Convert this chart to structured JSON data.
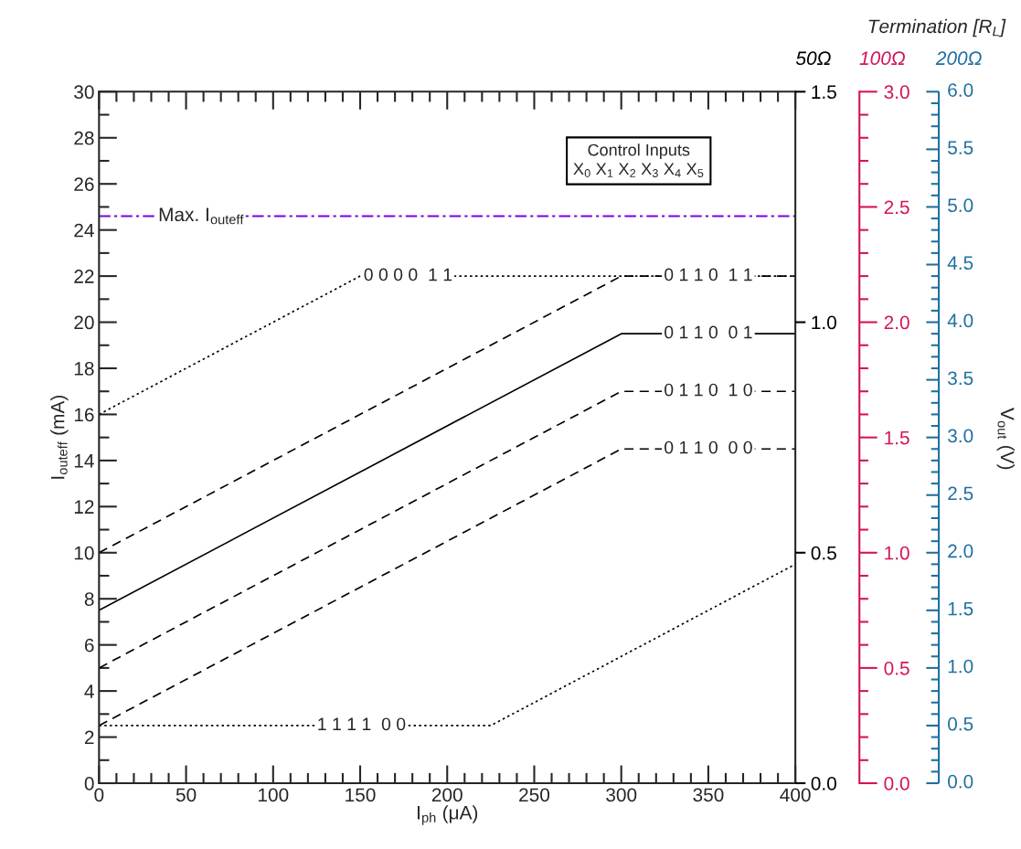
{
  "chart_data": {
    "type": "line",
    "xlabel": "I$_{ph}$ (μA)",
    "ylabel": "I$_{outeff}$ (mA)",
    "y2label": "50Ω",
    "y3label": "100Ω",
    "xlim": [
      0,
      400
    ],
    "xticks": [
      0,
      50,
      100,
      150,
      200,
      250,
      300,
      350,
      400
    ],
    "ylim": [
      0,
      30
    ],
    "yticks": [
      0,
      2,
      4,
      6,
      8,
      10,
      12,
      14,
      16,
      18,
      20,
      22,
      24,
      26,
      28,
      30
    ],
    "y2lim": [
      0,
      1.5
    ],
    "y2ticks": [
      {
        "value": 0,
        "label": "0.0"
      },
      0.5,
      {
        "value": 1,
        "label": "1.0"
      },
      1.5
    ],
    "y3lim": [
      0,
      3
    ],
    "y3ticks": [
      {
        "value": 0,
        "label": "0.0"
      },
      0.5,
      {
        "value": 1,
        "label": "1.0"
      },
      1.5,
      {
        "value": 2,
        "label": "2.0"
      },
      2.5,
      {
        "value": 3,
        "label": "3.0"
      }
    ],
    "series": [
      {
        "name": "0 0 0 0  1 1",
        "color": "#000000",
        "line_style": "dotted",
        "x": [
          0,
          150,
          400
        ],
        "values": [
          16,
          22,
          22
        ]
      },
      {
        "name": "0 1 1 0  1 1",
        "color": "#000000",
        "line_style": "dashed",
        "x": [
          0,
          300,
          400
        ],
        "values": [
          10,
          22,
          22
        ]
      },
      {
        "name": "0 1 1 0  0 1",
        "color": "#000000",
        "line_style": "solid",
        "x": [
          0,
          300,
          400
        ],
        "values": [
          7.5,
          19.5,
          19.5
        ]
      },
      {
        "name": "0 1 1 0  1 0",
        "color": "#000000",
        "line_style": "dashed",
        "x": [
          0,
          300,
          400
        ],
        "values": [
          5,
          17,
          17
        ]
      },
      {
        "name": "0 1 1 0  0 0",
        "color": "#000000",
        "line_style": "dashed",
        "x": [
          0,
          300,
          400
        ],
        "values": [
          2.5,
          14.5,
          14.5
        ]
      },
      {
        "name": "1 1 1 1  0 0",
        "color": "#000000",
        "line_style": "dotted",
        "x": [
          0,
          225,
          400
        ],
        "values": [
          2.5,
          2.5,
          9.5
        ]
      }
    ],
    "ref_lines": [
      {
        "axis": "y",
        "value": 24.6,
        "label": "Max. I$_{outeff}$",
        "color": "#7a00e6",
        "line_style": "dashdot"
      }
    ],
    "annotations": [
      "Termination [R$_{L}$]",
      "V$_{out}$ (V)",
      "Control Inputs\nX$_{0}$ X$_{1}$ X$_{2}$ X$_{3}$ X$_{4}$ X$_{5}$",
      "200Ω",
      "0.0",
      "0.5",
      "1.0",
      "1.5",
      "2.0",
      "2.5",
      "3.0",
      "3.5",
      "4.0",
      "4.5",
      "5.0",
      "5.5",
      "6.0"
    ],
    "grid": false,
    "legend": false,
    "marker": "none"
  }
}
